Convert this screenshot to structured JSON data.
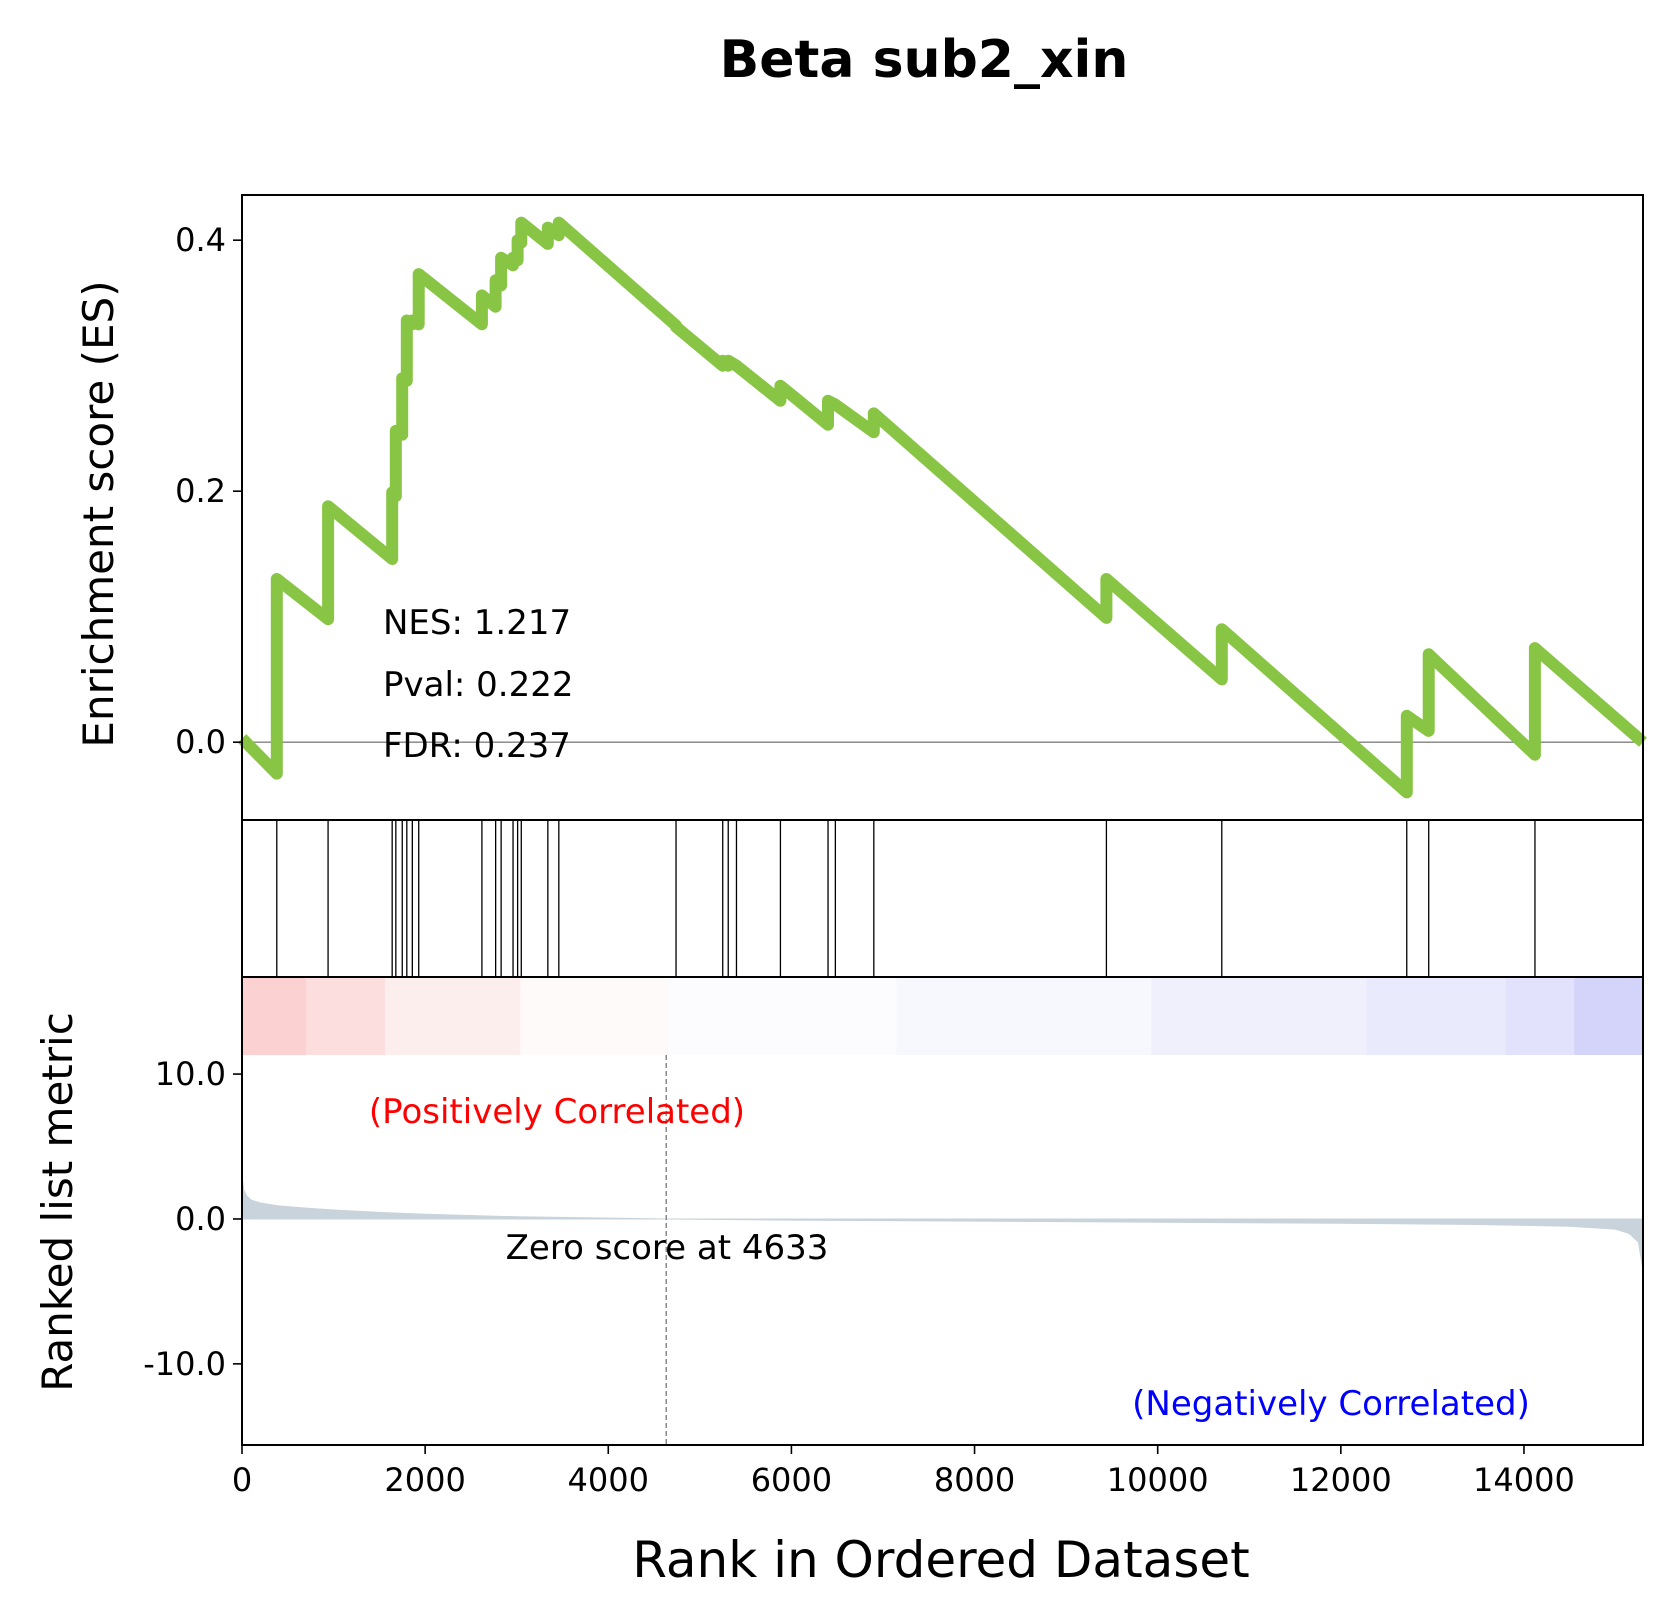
{
  "chart_data": {
    "type": "line",
    "title": "Beta sub2_xin",
    "xlabel": "Rank in Ordered Dataset",
    "n_genes": 15300,
    "xlim": [
      0,
      15300
    ],
    "xticks": [
      0,
      2000,
      4000,
      6000,
      8000,
      10000,
      12000,
      14000
    ],
    "es_panel": {
      "ylabel": "Enrichment score (ES)",
      "ylim": [
        -0.062,
        0.436
      ],
      "yticks": [
        0.0,
        0.2,
        0.4
      ],
      "ytick_labels": [
        "0.0",
        "0.2",
        "0.4"
      ],
      "line_color": "#88c544",
      "zero_line": true,
      "series": [
        {
          "x": [
            0,
            380,
            380,
            940,
            940,
            1640,
            1640,
            1680,
            1680,
            1750,
            1750,
            1800,
            1800,
            1860,
            1860,
            1930,
            1930,
            2620,
            2620,
            2770,
            2770,
            2830,
            2830,
            2960,
            2960,
            3010,
            3010,
            3050,
            3050,
            3340,
            3340,
            3460,
            3460,
            4740,
            4740,
            5250,
            5250,
            5310,
            5310,
            5400,
            5400,
            5880,
            5880,
            6400,
            6400,
            6480,
            6480,
            6900,
            6900,
            9440,
            9440,
            10700,
            10700,
            12720,
            12720,
            12960,
            12960,
            14120,
            14120,
            15300
          ],
          "y": [
            0.003,
            -0.025,
            0.13,
            0.098,
            0.188,
            0.146,
            0.199,
            0.196,
            0.248,
            0.245,
            0.29,
            0.288,
            0.336,
            0.333,
            0.336,
            0.333,
            0.373,
            0.333,
            0.356,
            0.347,
            0.368,
            0.364,
            0.386,
            0.38,
            0.386,
            0.384,
            0.4,
            0.398,
            0.414,
            0.397,
            0.41,
            0.404,
            0.414,
            0.332,
            0.331,
            0.3,
            0.304,
            0.3,
            0.304,
            0.3,
            0.3,
            0.272,
            0.284,
            0.253,
            0.272,
            0.269,
            0.269,
            0.247,
            0.262,
            0.099,
            0.13,
            0.05,
            0.09,
            -0.04,
            0.021,
            0.009,
            0.07,
            -0.01,
            0.075,
            0.0
          ]
        }
      ],
      "annotations": [
        "NES: 1.217",
        "Pval: 0.222",
        "FDR: 0.237"
      ]
    },
    "hits": [
      380,
      940,
      1640,
      1680,
      1750,
      1800,
      1860,
      1930,
      2620,
      2770,
      2830,
      2960,
      3010,
      3050,
      3340,
      3460,
      4740,
      5250,
      5310,
      5400,
      5880,
      6400,
      6480,
      6900,
      9440,
      10700,
      12720,
      12960,
      14120
    ],
    "heatmap": {
      "colormap": "bwr",
      "segments": [
        {
          "x0": 0,
          "x1": 700,
          "color": "#fbd1d1"
        },
        {
          "x0": 700,
          "x1": 1560,
          "color": "#fcdede"
        },
        {
          "x0": 1560,
          "x1": 3040,
          "color": "#fdeeee"
        },
        {
          "x0": 3040,
          "x1": 4650,
          "color": "#fffafa"
        },
        {
          "x0": 4650,
          "x1": 7150,
          "color": "#fcfcff"
        },
        {
          "x0": 7150,
          "x1": 9930,
          "color": "#f7f7fe"
        },
        {
          "x0": 9930,
          "x1": 12280,
          "color": "#f0f0fd"
        },
        {
          "x0": 12280,
          "x1": 13800,
          "color": "#eaeafd"
        },
        {
          "x0": 13800,
          "x1": 14550,
          "color": "#e2e2fc"
        },
        {
          "x0": 14550,
          "x1": 15300,
          "color": "#d4d4fb"
        }
      ]
    },
    "rank_panel": {
      "ylabel": "Ranked list metric",
      "ylim": [
        -15.6,
        16.7
      ],
      "yticks": [
        10.0,
        0.0,
        -10.0
      ],
      "ytick_labels": [
        "10.0",
        "0.0",
        "-10.0"
      ],
      "fill_color": "#c9d3db",
      "metric": {
        "x": [
          0,
          20,
          50,
          100,
          200,
          400,
          700,
          1000,
          1500,
          2000,
          3000,
          4633,
          6000,
          8000,
          10000,
          12000,
          13500,
          14500,
          15000,
          15150,
          15250,
          15300
        ],
        "y": [
          3.0,
          2.0,
          1.6,
          1.3,
          1.1,
          0.9,
          0.75,
          0.62,
          0.45,
          0.32,
          0.15,
          0.0,
          -0.08,
          -0.15,
          -0.22,
          -0.3,
          -0.38,
          -0.5,
          -0.7,
          -1.0,
          -1.6,
          -3.5
        ]
      },
      "zero_cross": 4633,
      "zero_label": "Zero score at 4633",
      "pos_label": "(Positively Correlated)",
      "neg_label": "(Negatively Correlated)",
      "pos_color": "#ff0000",
      "neg_color": "#0000ff"
    }
  }
}
